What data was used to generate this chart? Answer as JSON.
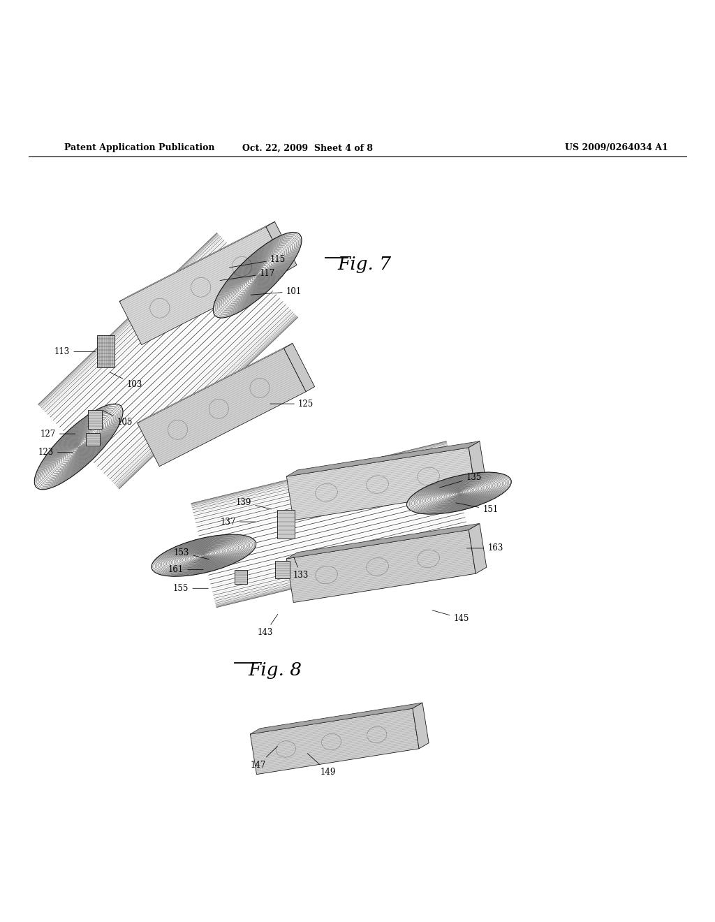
{
  "bg_color": "#ffffff",
  "header_left": "Patent Application Publication",
  "header_mid": "Oct. 22, 2009  Sheet 4 of 8",
  "header_right": "US 2009/0264034 A1",
  "fig7_label": "Fig. 7",
  "fig8_label": "Fig. 8"
}
